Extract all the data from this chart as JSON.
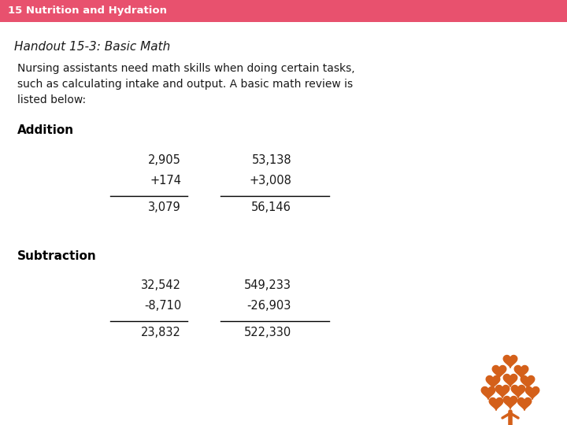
{
  "header_bg_color": "#e8516e",
  "header_text": "15 Nutrition and Hydration",
  "header_text_color": "#ffffff",
  "header_font_size": 9.5,
  "bg_color": "#ffffff",
  "subtitle": "Handout 15-3: Basic Math",
  "subtitle_font_size": 11,
  "body_text": "Nursing assistants need math skills when doing certain tasks,\nsuch as calculating intake and output. A basic math review is\nlisted below:",
  "body_font_size": 10,
  "section1_title": "Addition",
  "section1_font_size": 11,
  "section2_title": "Subtraction",
  "section2_font_size": 11,
  "addition_col1": [
    "2,905",
    "+174",
    "3,079"
  ],
  "addition_col2": [
    "53,138",
    "+3,008",
    "56,146"
  ],
  "subtraction_col1": [
    "32,542",
    "-8,710",
    "23,832"
  ],
  "subtraction_col2": [
    "549,233",
    "-26,903",
    "522,330"
  ],
  "table_font_size": 10.5,
  "line_color": "#000000",
  "text_color": "#1a1a1a",
  "bold_color": "#000000",
  "hartman_color": "#d4601a"
}
